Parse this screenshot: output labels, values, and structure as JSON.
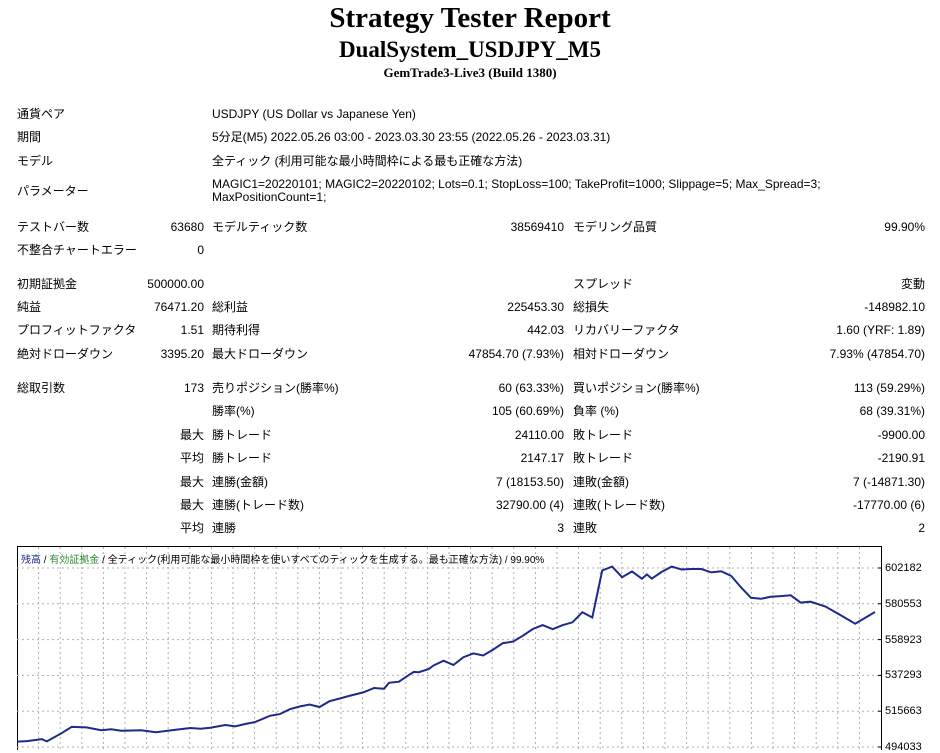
{
  "header": {
    "title": "Strategy Tester Report",
    "subtitle": "DualSystem_USDJPY_M5",
    "server": "GemTrade3-Live3 (Build 1380)"
  },
  "info": {
    "symbol_label": "通貨ペア",
    "symbol_value": "USDJPY (US Dollar vs Japanese Yen)",
    "period_label": "期間",
    "period_value": "5分足(M5) 2022.05.26 03:00 - 2023.03.30 23:55 (2022.05.26 - 2023.03.31)",
    "model_label": "モデル",
    "model_value": "全ティック (利用可能な最小時間枠による最も正確な方法)",
    "params_label": "パラメーター",
    "params_line1": "MAGIC1=20220101; MAGIC2=20220102; Lots=0.1; StopLoss=100; TakeProfit=1000; Slippage=5; Max_Spread=3;",
    "params_line2": "MaxPositionCount=1;"
  },
  "stats": {
    "bars_label": "テストバー数",
    "bars_value": "63680",
    "ticks_label": "モデルティック数",
    "ticks_value": "38569410",
    "quality_label": "モデリング品質",
    "quality_value": "99.90%",
    "mismatch_label": "不整合チャートエラー",
    "mismatch_value": "0",
    "deposit_label": "初期証拠金",
    "deposit_value": "500000.00",
    "spread_label": "スプレッド",
    "spread_value": "変動",
    "net_label": "純益",
    "net_value": "76471.20",
    "gross_profit_label": "総利益",
    "gross_profit_value": "225453.30",
    "gross_loss_label": "総損失",
    "gross_loss_value": "-148982.10",
    "pf_label": "プロフィットファクタ",
    "pf_value": "1.51",
    "expected_label": "期待利得",
    "expected_value": "442.03",
    "recovery_label": "リカバリーファクタ",
    "recovery_value": "1.60 (YRF: 1.89)",
    "abs_dd_label": "絶対ドローダウン",
    "abs_dd_value": "3395.20",
    "max_dd_label": "最大ドローダウン",
    "max_dd_value": "47854.70 (7.93%)",
    "rel_dd_label": "相対ドローダウン",
    "rel_dd_value": "7.93% (47854.70)",
    "trades_label": "総取引数",
    "trades_value": "173",
    "short_label": "売りポジション(勝率%)",
    "short_value": "60 (63.33%)",
    "long_label": "買いポジション(勝率%)",
    "long_value": "113 (59.29%)",
    "win_rate_label": "勝率(%)",
    "win_rate_value": "105 (60.69%)",
    "loss_rate_label": "負率 (%)",
    "loss_rate_value": "68 (39.31%)",
    "max_word": "最大",
    "avg_word": "平均",
    "largest_win_label": "勝トレード",
    "largest_win_value": "24110.00",
    "largest_loss_label": "敗トレード",
    "largest_loss_value": "-9900.00",
    "avg_win_label": "勝トレード",
    "avg_win_value": "2147.17",
    "avg_loss_label": "敗トレード",
    "avg_loss_value": "-2190.91",
    "cons_wins_amt_label": "連勝(金額)",
    "cons_wins_amt_value": "7 (18153.50)",
    "cons_loss_amt_label": "連敗(金額)",
    "cons_loss_amt_value": "7 (-14871.30)",
    "cons_wins_trades_label": "連勝(トレード数)",
    "cons_wins_trades_value": "32790.00 (4)",
    "cons_loss_trades_label": "連敗(トレード数)",
    "cons_loss_trades_value": "-17770.00 (6)",
    "avg_cons_wins_label": "連勝",
    "avg_cons_wins_value": "3",
    "avg_cons_loss_label": "連敗",
    "avg_cons_loss_value": "2"
  },
  "chart_legend": {
    "balance": "残高",
    "sep1": " / ",
    "equity": "有効証拠金",
    "sep2": " / ",
    "model_text": "全ティック(利用可能な最小時間枠を使いすべてのティックを生成する。最も正確な方法)",
    "sep3": " / ",
    "quality": "99.90%"
  },
  "chart_data": {
    "type": "line",
    "y_ticks": [
      "602182",
      "580553",
      "558923",
      "537293",
      "515663",
      "494033"
    ],
    "ylim": [
      494033,
      602182
    ],
    "grid": true,
    "series": [
      {
        "name": "残高",
        "color": "#1c2a8a",
        "x": [
          0,
          2,
          5,
          6,
          9,
          11,
          14,
          17,
          19,
          21,
          25,
          28,
          32,
          35,
          37,
          39,
          42,
          44,
          46,
          48,
          51,
          53,
          55,
          57,
          59,
          61,
          63,
          65,
          67,
          69,
          70,
          72,
          74,
          75,
          77,
          79,
          80,
          81,
          83,
          84,
          86,
          88,
          90,
          92,
          94,
          96,
          98,
          100,
          102,
          104,
          106,
          108,
          110,
          112,
          114,
          116,
          118,
          120,
          122,
          124,
          126,
          127,
          128,
          130,
          132,
          134,
          136,
          138,
          140,
          142,
          144,
          146,
          148,
          150,
          152,
          154,
          156,
          158,
          160,
          163,
          166,
          169,
          173
        ],
        "y": [
          497300,
          497600,
          498800,
          497400,
          502400,
          506200,
          505900,
          504200,
          504700,
          503900,
          504100,
          503000,
          504500,
          505500,
          505000,
          505700,
          507300,
          506500,
          507900,
          509100,
          512900,
          513900,
          516900,
          518500,
          519700,
          518200,
          521700,
          523300,
          524900,
          526400,
          527200,
          529700,
          529200,
          532800,
          533500,
          537500,
          539400,
          539200,
          541100,
          543300,
          546200,
          543600,
          548300,
          550600,
          549300,
          552900,
          556800,
          557700,
          561300,
          565300,
          567700,
          565200,
          567600,
          569400,
          575500,
          572300,
          600700,
          603000,
          596600,
          600100,
          595700,
          598300,
          595800,
          599800,
          603000,
          601300,
          601600,
          601600,
          599500,
          600200,
          597400,
          590400,
          584200,
          583600,
          584800,
          585200,
          585700,
          581300,
          581800,
          578900,
          573800,
          568500,
          575600
        ]
      }
    ]
  }
}
